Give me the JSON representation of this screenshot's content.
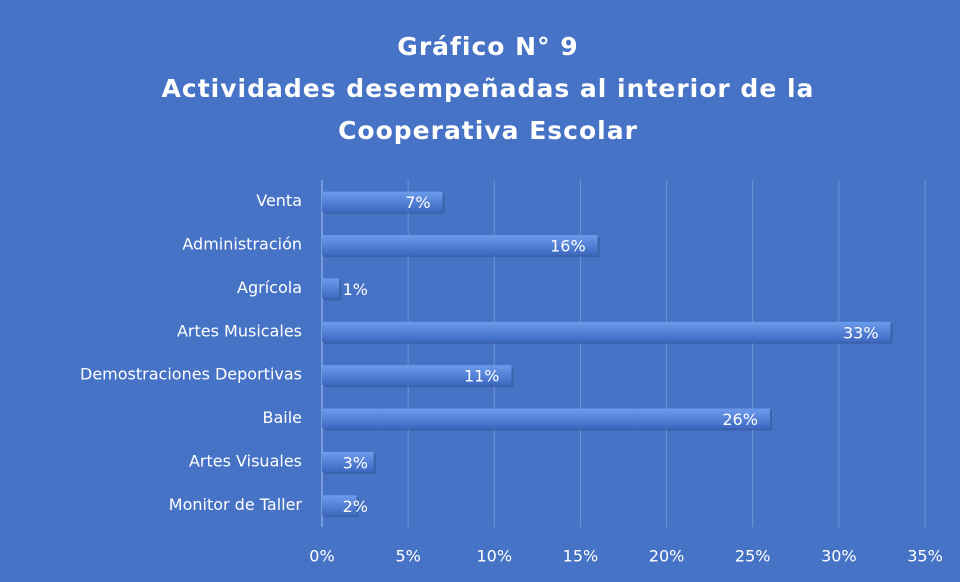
{
  "chart_data": {
    "type": "barh",
    "title": [
      "Gráfico N° 9",
      "Actividades desempeñadas al interior de la",
      "Cooperativa Escolar"
    ],
    "categories": [
      "Venta",
      "Administración",
      "Agrícola",
      "Artes Musicales",
      "Demostraciones Deportivas",
      "Baile",
      "Artes Visuales",
      "Monitor de Taller"
    ],
    "values": [
      7,
      16,
      1,
      33,
      11,
      26,
      3,
      2
    ],
    "value_labels": [
      "7%",
      "16%",
      "1%",
      "33%",
      "11%",
      "26%",
      "3%",
      "2%"
    ],
    "color": "#5a8ae0",
    "xlim": [
      0,
      35
    ],
    "xticks": [
      {
        "value": 0,
        "label": "0%"
      },
      {
        "value": 5,
        "label": "5%"
      },
      {
        "value": 10,
        "label": "10%"
      },
      {
        "value": 15,
        "label": "15%"
      },
      {
        "value": 20,
        "label": "20%"
      },
      {
        "value": 25,
        "label": "25%"
      },
      {
        "value": 30,
        "label": "30%"
      },
      {
        "value": 35,
        "label": "35%"
      }
    ],
    "grid": true
  }
}
